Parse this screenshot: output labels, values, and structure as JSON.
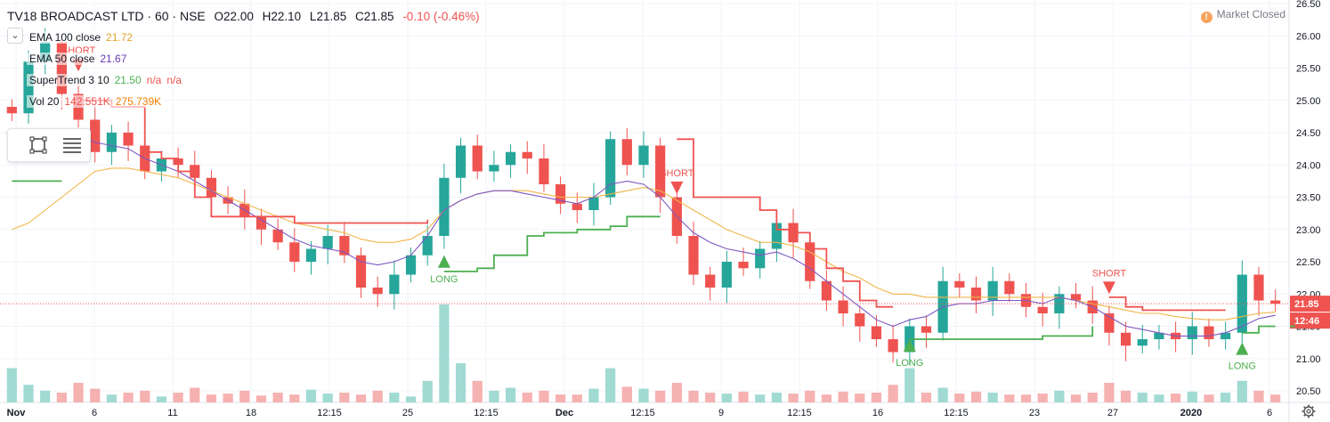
{
  "header": {
    "symbol": "TV18 BROADCAST LTD · 60 · NSE",
    "open_label": "O",
    "open": "22.00",
    "high_label": "H",
    "high": "22.10",
    "low_label": "L",
    "low": "21.85",
    "close_label": "C",
    "close": "21.85",
    "change": "-0.10 (-0.46%)"
  },
  "indicators": [
    {
      "name": "EMA 100 close",
      "value": "21.72",
      "color": "#e0a528"
    },
    {
      "name": "EMA 50 close",
      "value": "21.67",
      "color": "#673ab7"
    },
    {
      "name": "SuperTrend 3 10",
      "value": "21.50",
      "extra": "n/a",
      "extra2": "n/a",
      "colors": [
        "#4caf50",
        "#ef5350",
        "#ef5350"
      ]
    },
    {
      "name": "Vol 20",
      "value": "142.551K",
      "extra": "275.739K",
      "colors": [
        "#ef5350",
        "#f57c00"
      ]
    }
  ],
  "market_status": "Market Closed",
  "icons": [
    "chevron-down-icon",
    "rectangle-tool-icon",
    "hamburger-icon",
    "alert-icon",
    "settings-gear-icon"
  ],
  "chart_data": {
    "type": "candlestick",
    "timeframe": "60",
    "ylim": [
      20.4,
      26.5
    ],
    "price_ticks": [
      "26.50",
      "26.00",
      "25.50",
      "25.00",
      "24.50",
      "24.00",
      "23.50",
      "23.00",
      "22.50",
      "22.00",
      "21.50",
      "21.00",
      "20.50"
    ],
    "x_ticks": [
      "Nov",
      "6",
      "11",
      "18",
      "12:15",
      "25",
      "12:15",
      "Dec",
      "12:15",
      "9",
      "12:15",
      "16",
      "12:15",
      "23",
      "27",
      "2020",
      "6"
    ],
    "last_price": "21.85",
    "countdown": "12:46",
    "ema50_now": "21.67",
    "supertrend_now": "21.50",
    "colors": {
      "up": "#26a69a",
      "down": "#ef5350",
      "ema100": "#f0b64a",
      "ema50": "#7e57c2",
      "st_up": "#4caf50",
      "st_down": "#ef5350",
      "vol_up": "#8fd3cb",
      "vol_down": "#f5a3a3"
    },
    "signals": [
      {
        "label": "SHORT",
        "date": "Nov 4",
        "price": 25.45
      },
      {
        "label": "LONG",
        "date": "Nov 21",
        "price": 22.6
      },
      {
        "label": "SHORT",
        "date": "Dec 2",
        "price": 23.55
      },
      {
        "label": "LONG",
        "date": "Dec 13",
        "price": 21.3
      },
      {
        "label": "SHORT",
        "date": "Dec 24",
        "price": 22.0
      },
      {
        "label": "LONG",
        "date": "Jan 3",
        "price": 21.25
      }
    ],
    "closes": [
      24.8,
      25.6,
      25.9,
      25.1,
      24.7,
      24.2,
      24.5,
      24.3,
      23.9,
      24.1,
      24.0,
      23.8,
      23.5,
      23.4,
      23.2,
      23.0,
      22.8,
      22.5,
      22.7,
      22.9,
      22.6,
      22.1,
      22.0,
      22.3,
      22.6,
      22.9,
      23.8,
      24.3,
      23.9,
      24.0,
      24.2,
      24.1,
      23.7,
      23.4,
      23.3,
      23.5,
      24.4,
      24.0,
      24.3,
      23.5,
      22.9,
      22.3,
      22.1,
      22.5,
      22.4,
      22.7,
      23.1,
      22.8,
      22.2,
      21.9,
      21.7,
      21.5,
      21.3,
      21.1,
      21.5,
      21.4,
      22.2,
      22.1,
      21.9,
      22.2,
      22.0,
      21.8,
      21.7,
      22.0,
      21.9,
      21.7,
      21.4,
      21.2,
      21.3,
      21.4,
      21.3,
      21.5,
      21.3,
      21.4,
      22.3,
      21.9,
      21.85
    ],
    "ema100": [
      23.0,
      23.1,
      23.3,
      23.5,
      23.7,
      23.9,
      23.95,
      23.95,
      23.9,
      23.85,
      23.8,
      23.7,
      23.6,
      23.5,
      23.4,
      23.3,
      23.2,
      23.1,
      23.05,
      23.0,
      22.95,
      22.85,
      22.8,
      22.8,
      22.85,
      23.0,
      23.3,
      23.45,
      23.55,
      23.6,
      23.6,
      23.6,
      23.55,
      23.5,
      23.5,
      23.5,
      23.55,
      23.6,
      23.65,
      23.6,
      23.45,
      23.3,
      23.15,
      23.0,
      22.9,
      22.8,
      22.8,
      22.75,
      22.65,
      22.5,
      22.35,
      22.25,
      22.1,
      22.0,
      22.0,
      21.95,
      21.95,
      21.95,
      21.95,
      21.95,
      21.95,
      21.95,
      21.95,
      21.95,
      21.9,
      21.85,
      21.8,
      21.75,
      21.7,
      21.7,
      21.65,
      21.62,
      21.6,
      21.6,
      21.65,
      21.7,
      21.72
    ],
    "ema50": [
      24.3,
      24.45,
      24.55,
      24.5,
      24.45,
      24.35,
      24.3,
      24.25,
      24.1,
      24.0,
      23.9,
      23.75,
      23.6,
      23.45,
      23.3,
      23.15,
      23.0,
      22.85,
      22.75,
      22.7,
      22.65,
      22.5,
      22.45,
      22.5,
      22.6,
      22.9,
      23.3,
      23.45,
      23.55,
      23.6,
      23.6,
      23.55,
      23.5,
      23.45,
      23.4,
      23.5,
      23.7,
      23.75,
      23.7,
      23.5,
      23.2,
      22.95,
      22.8,
      22.7,
      22.65,
      22.6,
      22.65,
      22.55,
      22.4,
      22.2,
      22.0,
      21.8,
      21.6,
      21.5,
      21.6,
      21.65,
      21.8,
      21.85,
      21.85,
      21.9,
      21.9,
      21.9,
      21.85,
      21.95,
      21.9,
      21.8,
      21.65,
      21.5,
      21.45,
      21.4,
      21.35,
      21.35,
      21.35,
      21.4,
      21.5,
      21.62,
      21.67
    ]
  }
}
